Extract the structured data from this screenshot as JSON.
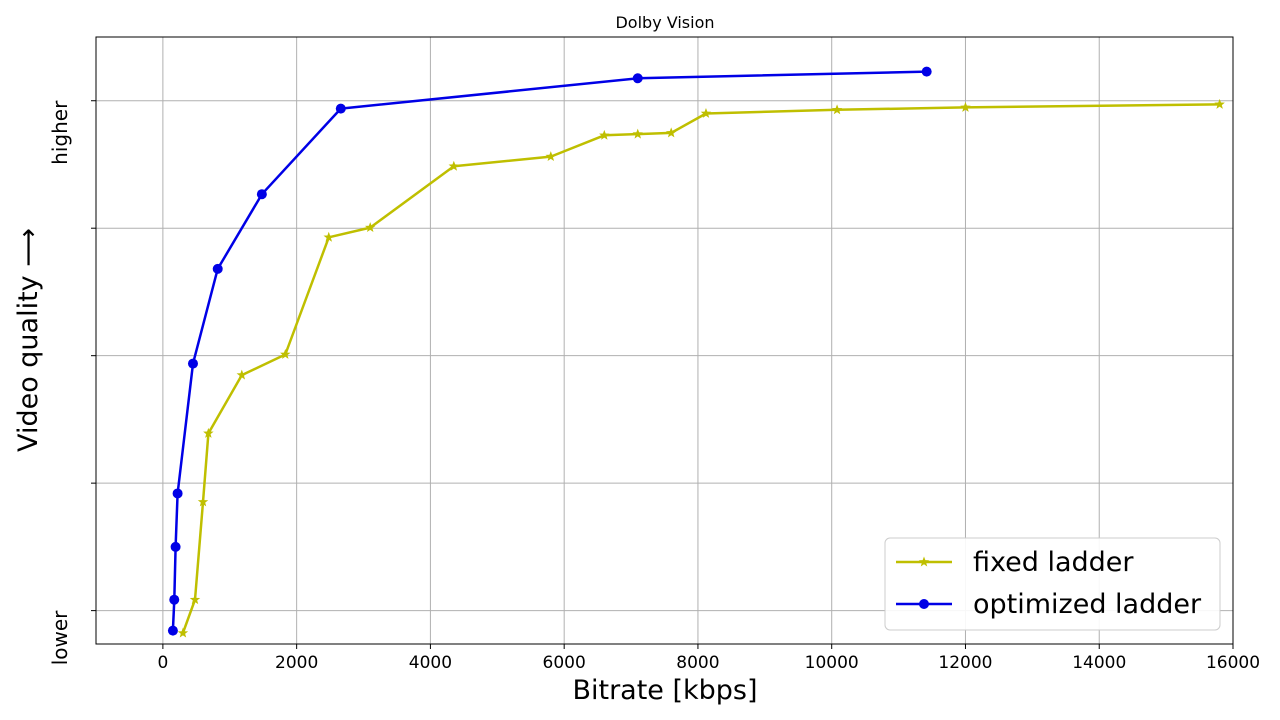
{
  "chart_data": {
    "type": "line",
    "title": "Dolby Vision",
    "xlabel": "Bitrate [kbps]",
    "ylabel": "Video quality ⟶",
    "xlim": [
      -1000,
      16000
    ],
    "ylim": [
      0,
      1
    ],
    "x_ticks": [
      0,
      2000,
      4000,
      6000,
      8000,
      10000,
      12000,
      14000,
      16000
    ],
    "x_tick_labels": [
      "0",
      "2000",
      "4000",
      "6000",
      "8000",
      "10000",
      "12000",
      "14000",
      "16000"
    ],
    "y_ticks": [
      0.055,
      0.265,
      0.475,
      0.685,
      0.895
    ],
    "y_tick_labels": [
      {
        "value": 0.055,
        "label": "lower"
      },
      {
        "value": 0.895,
        "label": "higher"
      }
    ],
    "grid": true,
    "legend": "lower-right",
    "series": [
      {
        "name": "fixed ladder",
        "color": "#bfbf00",
        "marker": "star",
        "x": [
          300,
          480,
          600,
          680,
          1180,
          1830,
          2480,
          3100,
          4350,
          5800,
          6600,
          7100,
          7600,
          8120,
          10080,
          12000,
          15800
        ],
        "y": [
          0.018,
          0.073,
          0.234,
          0.347,
          0.443,
          0.477,
          0.67,
          0.686,
          0.787,
          0.803,
          0.838,
          0.84,
          0.842,
          0.874,
          0.88,
          0.884,
          0.889
        ]
      },
      {
        "name": "optimized ladder",
        "color": "#0000e6",
        "marker": "circle",
        "x": [
          150,
          170,
          190,
          220,
          450,
          820,
          1480,
          2660,
          7100,
          11420
        ],
        "y": [
          0.022,
          0.073,
          0.16,
          0.248,
          0.462,
          0.618,
          0.741,
          0.882,
          0.932,
          0.943
        ]
      }
    ]
  }
}
